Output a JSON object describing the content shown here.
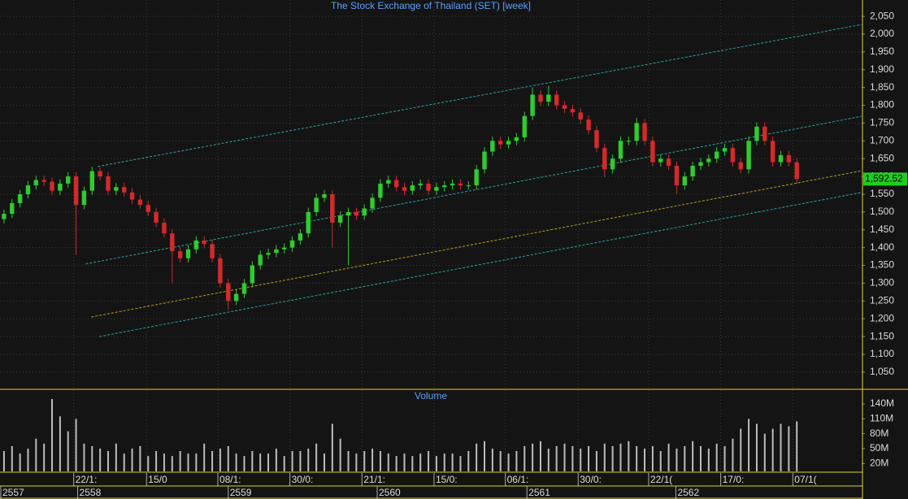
{
  "chart_data": {
    "type": "candlestick",
    "title": "The Stock Exchange of Thailand (SET) [week]",
    "up_color": "#2ecc2e",
    "down_color": "#d42a2a",
    "xlim": [
      -0.5,
      107.1
    ],
    "ylim": [
      1004,
      2096
    ],
    "yticks": [
      {
        "value": 1050,
        "label": "1,050"
      },
      {
        "value": 1100,
        "label": "1,100"
      },
      {
        "value": 1150,
        "label": "1,150"
      },
      {
        "value": 1200,
        "label": "1,200"
      },
      {
        "value": 1250,
        "label": "1,250"
      },
      {
        "value": 1300,
        "label": "1,300"
      },
      {
        "value": 1350,
        "label": "1,350"
      },
      {
        "value": 1400,
        "label": "1,400"
      },
      {
        "value": 1450,
        "label": "1,450"
      },
      {
        "value": 1500,
        "label": "1,500"
      },
      {
        "value": 1550,
        "label": "1,550"
      },
      {
        "value": 1600,
        "label": "1,600"
      },
      {
        "value": 1650,
        "label": "1,650"
      },
      {
        "value": 1700,
        "label": "1,700"
      },
      {
        "value": 1750,
        "label": "1,750"
      },
      {
        "value": 1800,
        "label": "1,800"
      },
      {
        "value": 1850,
        "label": "1,850"
      },
      {
        "value": 1900,
        "label": "1,900"
      },
      {
        "value": 1950,
        "label": "1,950"
      },
      {
        "value": 2000,
        "label": "2,000"
      },
      {
        "value": 2050,
        "label": "2,050"
      }
    ],
    "grid": true,
    "xticks": [
      {
        "value": 8.7,
        "label": "22/1:"
      },
      {
        "value": 17.8,
        "label": "15/0"
      },
      {
        "value": 26.7,
        "label": "08/1:"
      },
      {
        "value": 35.7,
        "label": "30/0:"
      },
      {
        "value": 44.7,
        "label": "21/1:"
      },
      {
        "value": 53.7,
        "label": "15/0:"
      },
      {
        "value": 62.6,
        "label": "06/1:"
      },
      {
        "value": 71.7,
        "label": "30/0:"
      },
      {
        "value": 80.5,
        "label": "22/1("
      },
      {
        "value": 89.5,
        "label": "17/0:"
      },
      {
        "value": 98.5,
        "label": "07/1("
      }
    ],
    "year_ticks": [
      {
        "value": -0.5,
        "label": "2557"
      },
      {
        "value": 9.2,
        "label": "2558"
      },
      {
        "value": 28,
        "label": "2559"
      },
      {
        "value": 46.6,
        "label": "2560"
      },
      {
        "value": 65.3,
        "label": "2561"
      },
      {
        "value": 83.9,
        "label": "2562"
      }
    ],
    "open": [
      1480,
      1495,
      1525,
      1550,
      1575,
      1590,
      1585,
      1560,
      1580,
      1600,
      1520,
      1560,
      1615,
      1600,
      1560,
      1570,
      1555,
      1535,
      1520,
      1500,
      1470,
      1440,
      1390,
      1370,
      1395,
      1420,
      1410,
      1370,
      1300,
      1250,
      1270,
      1300,
      1350,
      1380,
      1385,
      1395,
      1400,
      1420,
      1440,
      1500,
      1540,
      1550,
      1470,
      1490,
      1500,
      1490,
      1510,
      1540,
      1580,
      1590,
      1570,
      1560,
      1575,
      1580,
      1560,
      1570,
      1575,
      1580,
      1575,
      1575,
      1620,
      1670,
      1700,
      1690,
      1700,
      1710,
      1770,
      1830,
      1810,
      1830,
      1800,
      1790,
      1780,
      1760,
      1730,
      1680,
      1620,
      1650,
      1700,
      1700,
      1750,
      1700,
      1640,
      1650,
      1630,
      1575,
      1600,
      1630,
      1640,
      1650,
      1670,
      1680,
      1640,
      1620,
      1700,
      1740,
      1700,
      1640,
      1660,
      1640
    ],
    "high": [
      1507,
      1537,
      1562,
      1587,
      1602,
      1602,
      1597,
      1592,
      1612,
      1612,
      1572,
      1627,
      1627,
      1612,
      1582,
      1582,
      1567,
      1547,
      1532,
      1512,
      1482,
      1452,
      1402,
      1407,
      1432,
      1432,
      1422,
      1382,
      1312,
      1282,
      1312,
      1362,
      1392,
      1397,
      1407,
      1412,
      1432,
      1452,
      1512,
      1552,
      1562,
      1562,
      1502,
      1512,
      1512,
      1522,
      1552,
      1592,
      1602,
      1602,
      1582,
      1587,
      1592,
      1592,
      1582,
      1587,
      1592,
      1592,
      1587,
      1632,
      1682,
      1712,
      1712,
      1712,
      1722,
      1782,
      1850,
      1842,
      1855,
      1842,
      1812,
      1802,
      1792,
      1772,
      1742,
      1692,
      1662,
      1712,
      1712,
      1765,
      1762,
      1712,
      1662,
      1662,
      1642,
      1612,
      1642,
      1652,
      1662,
      1682,
      1692,
      1692,
      1652,
      1712,
      1752,
      1752,
      1712,
      1672,
      1672,
      1652
    ],
    "low": [
      1468,
      1483,
      1513,
      1538,
      1563,
      1573,
      1548,
      1548,
      1568,
      1380,
      1508,
      1548,
      1588,
      1548,
      1548,
      1543,
      1523,
      1508,
      1488,
      1458,
      1428,
      1300,
      1358,
      1358,
      1383,
      1398,
      1358,
      1288,
      1225,
      1238,
      1258,
      1288,
      1338,
      1368,
      1373,
      1383,
      1388,
      1408,
      1428,
      1488,
      1528,
      1400,
      1458,
      1350,
      1478,
      1478,
      1498,
      1528,
      1568,
      1558,
      1548,
      1548,
      1563,
      1548,
      1548,
      1558,
      1563,
      1563,
      1563,
      1563,
      1608,
      1658,
      1678,
      1678,
      1688,
      1698,
      1758,
      1798,
      1798,
      1788,
      1778,
      1768,
      1748,
      1718,
      1668,
      1598,
      1608,
      1638,
      1688,
      1688,
      1688,
      1628,
      1628,
      1618,
      1550,
      1563,
      1588,
      1618,
      1628,
      1638,
      1658,
      1628,
      1608,
      1608,
      1688,
      1688,
      1628,
      1628,
      1628,
      1580
    ],
    "close": [
      1495,
      1525,
      1550,
      1575,
      1590,
      1585,
      1560,
      1580,
      1600,
      1520,
      1560,
      1615,
      1600,
      1560,
      1570,
      1555,
      1535,
      1520,
      1500,
      1470,
      1440,
      1390,
      1370,
      1395,
      1420,
      1410,
      1370,
      1300,
      1250,
      1270,
      1300,
      1350,
      1380,
      1385,
      1395,
      1400,
      1420,
      1440,
      1500,
      1540,
      1550,
      1470,
      1490,
      1500,
      1490,
      1510,
      1540,
      1580,
      1590,
      1570,
      1560,
      1575,
      1580,
      1560,
      1570,
      1575,
      1580,
      1575,
      1575,
      1620,
      1670,
      1700,
      1690,
      1700,
      1710,
      1770,
      1830,
      1810,
      1830,
      1800,
      1790,
      1780,
      1760,
      1730,
      1680,
      1620,
      1650,
      1700,
      1700,
      1750,
      1700,
      1640,
      1650,
      1630,
      1575,
      1600,
      1630,
      1640,
      1650,
      1670,
      1680,
      1640,
      1620,
      1700,
      1740,
      1700,
      1640,
      1660,
      1640,
      1592.52
    ],
    "last_price": {
      "value": 1592.52,
      "label": "1,592.52",
      "color": "#22cc22"
    },
    "trendlines": [
      {
        "color": "#2aa6a6",
        "x": [
          11.7,
          107.1
        ],
        "y": [
          1628,
          2027
        ]
      },
      {
        "color": "#2aa6a6",
        "x": [
          10.2,
          107.1
        ],
        "y": [
          1354,
          1769
        ]
      },
      {
        "color": "#2aa6a6",
        "x": [
          11.9,
          107.1
        ],
        "y": [
          1150,
          1555
        ]
      },
      {
        "color": "#b8a21a",
        "x": [
          10.9,
          107.1
        ],
        "y": [
          1205,
          1616
        ]
      }
    ],
    "volume": {
      "title": "Volume",
      "color": "#bdbdbd",
      "ylim": [
        4,
        168
      ],
      "yticks": [
        {
          "value": 140,
          "label": "140M"
        },
        {
          "value": 110,
          "label": "110M"
        },
        {
          "value": 80,
          "label": "80M"
        },
        {
          "value": 50,
          "label": "50M"
        },
        {
          "value": 20,
          "label": "20M"
        }
      ],
      "values": [
        45,
        55,
        40,
        50,
        70,
        60,
        150,
        115,
        85,
        110,
        60,
        55,
        50,
        45,
        60,
        40,
        50,
        55,
        35,
        45,
        40,
        35,
        45,
        40,
        40,
        60,
        45,
        50,
        55,
        40,
        35,
        45,
        40,
        40,
        50,
        35,
        45,
        45,
        50,
        60,
        40,
        100,
        70,
        45,
        40,
        45,
        50,
        45,
        40,
        35,
        40,
        35,
        40,
        45,
        35,
        40,
        40,
        35,
        45,
        60,
        65,
        50,
        45,
        40,
        45,
        55,
        60,
        65,
        50,
        55,
        60,
        55,
        50,
        55,
        45,
        60,
        55,
        60,
        65,
        55,
        50,
        55,
        45,
        60,
        50,
        55,
        65,
        55,
        50,
        60,
        55,
        70,
        90,
        110,
        100,
        80,
        90,
        100,
        95,
        105
      ]
    }
  }
}
